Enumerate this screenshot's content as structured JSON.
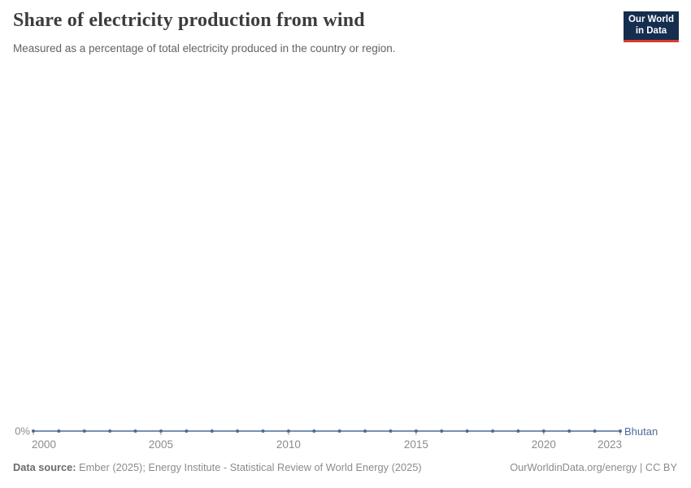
{
  "header": {
    "title": "Share of electricity production from wind",
    "subtitle": "Measured as a percentage of total electricity produced in the country or region.",
    "logo_line1": "Our World",
    "logo_line2": "in Data"
  },
  "footer": {
    "source_label": "Data source:",
    "source_text": " Ember (2025); Energy Institute - Statistical Review of World Energy (2025)",
    "citation": "OurWorldinData.org/energy | CC BY"
  },
  "colors": {
    "series_blue": "#4C6A9C",
    "axis_text": "#8c8c8c",
    "tick": "#a3a3a3",
    "logo_navy": "#152d4f",
    "logo_red": "#dc3a2f"
  },
  "chart_data": {
    "type": "line",
    "title": "Share of electricity production from wind",
    "subtitle": "Measured as a percentage of total electricity produced in the country or region.",
    "xlabel": "",
    "ylabel": "",
    "grid": false,
    "legend_position": "line-end",
    "x_range": [
      2000,
      2023
    ],
    "ylim": [
      0,
      100
    ],
    "x": [
      2000,
      2001,
      2002,
      2003,
      2004,
      2005,
      2006,
      2007,
      2008,
      2009,
      2010,
      2011,
      2012,
      2013,
      2014,
      2015,
      2016,
      2017,
      2018,
      2019,
      2020,
      2021,
      2022,
      2023
    ],
    "series": [
      {
        "name": "Bhutan",
        "color": "#4C6A9C",
        "values": [
          0,
          0,
          0,
          0,
          0,
          0,
          0,
          0,
          0,
          0,
          0,
          0,
          0,
          0,
          0,
          0,
          0,
          0,
          0,
          0,
          0,
          0,
          0,
          0
        ]
      }
    ],
    "x_ticks": [
      2000,
      2005,
      2010,
      2015,
      2020,
      2023
    ],
    "y_ticks": [
      {
        "value": 0,
        "label": "0%"
      }
    ]
  }
}
